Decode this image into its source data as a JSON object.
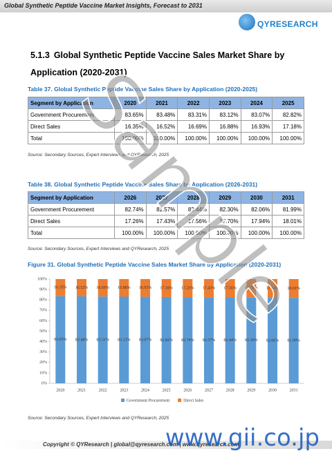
{
  "header": {
    "title": "Global Synthetic Peptide Vaccine Market Insights, Forecast to 2031",
    "logo": "QYRESEARCH"
  },
  "section": {
    "number": "5.1.3",
    "title": "Global Synthetic Peptide Vaccine Sales Market Share by Application (2020-2031)"
  },
  "tables": [
    {
      "caption": "Table 37.   Global Synthetic Peptide Vaccine Sales Share by Application (2020-2025)",
      "header": [
        "Segment by Application",
        "2020",
        "2021",
        "2022",
        "2023",
        "2024",
        "2025"
      ],
      "rows": [
        [
          "Government Procurement",
          "83.65%",
          "83.48%",
          "83.31%",
          "83.12%",
          "83.07%",
          "82.82%"
        ],
        [
          "Direct Sales",
          "16.35%",
          "16.52%",
          "16.69%",
          "16.88%",
          "16.93%",
          "17.18%"
        ],
        [
          "Total",
          "100.00%",
          "100.00%",
          "100.00%",
          "100.00%",
          "100.00%",
          "100.00%"
        ]
      ],
      "source": "Source: Secondary Sources, Expert Interviews and QYResearch, 2025"
    },
    {
      "caption": "Table 38.   Global Synthetic Peptide Vaccine Sales Share by Application (2026-2031)",
      "header": [
        "Segment by Application",
        "2026",
        "2027",
        "2028",
        "2029",
        "2030",
        "2031"
      ],
      "rows": [
        [
          "Government Procurement",
          "82.74%",
          "82.57%",
          "82.44%",
          "82.30%",
          "82.06%",
          "81.99%"
        ],
        [
          "Direct Sales",
          "17.26%",
          "17.43%",
          "17.56%",
          "17.70%",
          "17.94%",
          "18.01%"
        ],
        [
          "Total",
          "100.00%",
          "100.00%",
          "100.00%",
          "100.00%",
          "100.00%",
          "100.00%"
        ]
      ],
      "source": "Source: Secondary Sources, Expert Interviews and QYResearch, 2025"
    }
  ],
  "figure": {
    "caption": "Figure 31.   Global Synthetic Peptide Vaccine Sales Market Share by Application (2020-2031)",
    "source": "Source: Secondary Sources, Expert Interviews and QYResearch, 2025"
  },
  "chart_data": {
    "type": "stacked_bar",
    "categories": [
      "2020",
      "2021",
      "2022",
      "2023",
      "2024",
      "2025",
      "2026",
      "2027",
      "2028",
      "2029",
      "2030",
      "2031"
    ],
    "series": [
      {
        "name": "Government Procurement",
        "color": "#5b9bd5",
        "values": [
          83.65,
          83.48,
          83.31,
          83.12,
          83.07,
          82.82,
          82.74,
          82.57,
          82.44,
          82.3,
          82.06,
          81.99
        ],
        "value_labels": [
          "83.65%",
          "83.48%",
          "83.31%",
          "83.12%",
          "83.07%",
          "82.82%",
          "82.74%",
          "82.57%",
          "82.44%",
          "82.30%",
          "82.06%",
          "81.99%"
        ]
      },
      {
        "name": "Direct Sales",
        "color": "#ed7d31",
        "values": [
          16.35,
          16.52,
          16.69,
          16.88,
          16.93,
          17.18,
          17.26,
          17.43,
          17.56,
          17.7,
          17.94,
          18.01
        ],
        "value_labels": [
          "16.35%",
          "16.52%",
          "16.69%",
          "16.88%",
          "16.93%",
          "17.18%",
          "17.26%",
          "17.43%",
          "17.56%",
          "17.70%",
          "17.94%",
          "18.01%"
        ]
      }
    ],
    "ylim": [
      0,
      100
    ],
    "yticks": [
      {
        "value": 0,
        "label": "0%"
      },
      {
        "value": 10,
        "label": "10%"
      },
      {
        "value": 20,
        "label": "20%"
      },
      {
        "value": 30,
        "label": "30%"
      },
      {
        "value": 40,
        "label": "40%"
      },
      {
        "value": 50,
        "label": "50%"
      },
      {
        "value": 60,
        "label": "60%"
      },
      {
        "value": 70,
        "label": "70%"
      },
      {
        "value": 80,
        "label": "80%"
      },
      {
        "value": 90,
        "label": "90%"
      },
      {
        "value": 100,
        "label": "100%"
      }
    ],
    "legend": "bottom"
  },
  "footer": "Copyright © QYResearch | global@qyresearch.com | www.qyresearch.com",
  "watermarks": [
    "Sample",
    "www.gii.co.jp"
  ]
}
